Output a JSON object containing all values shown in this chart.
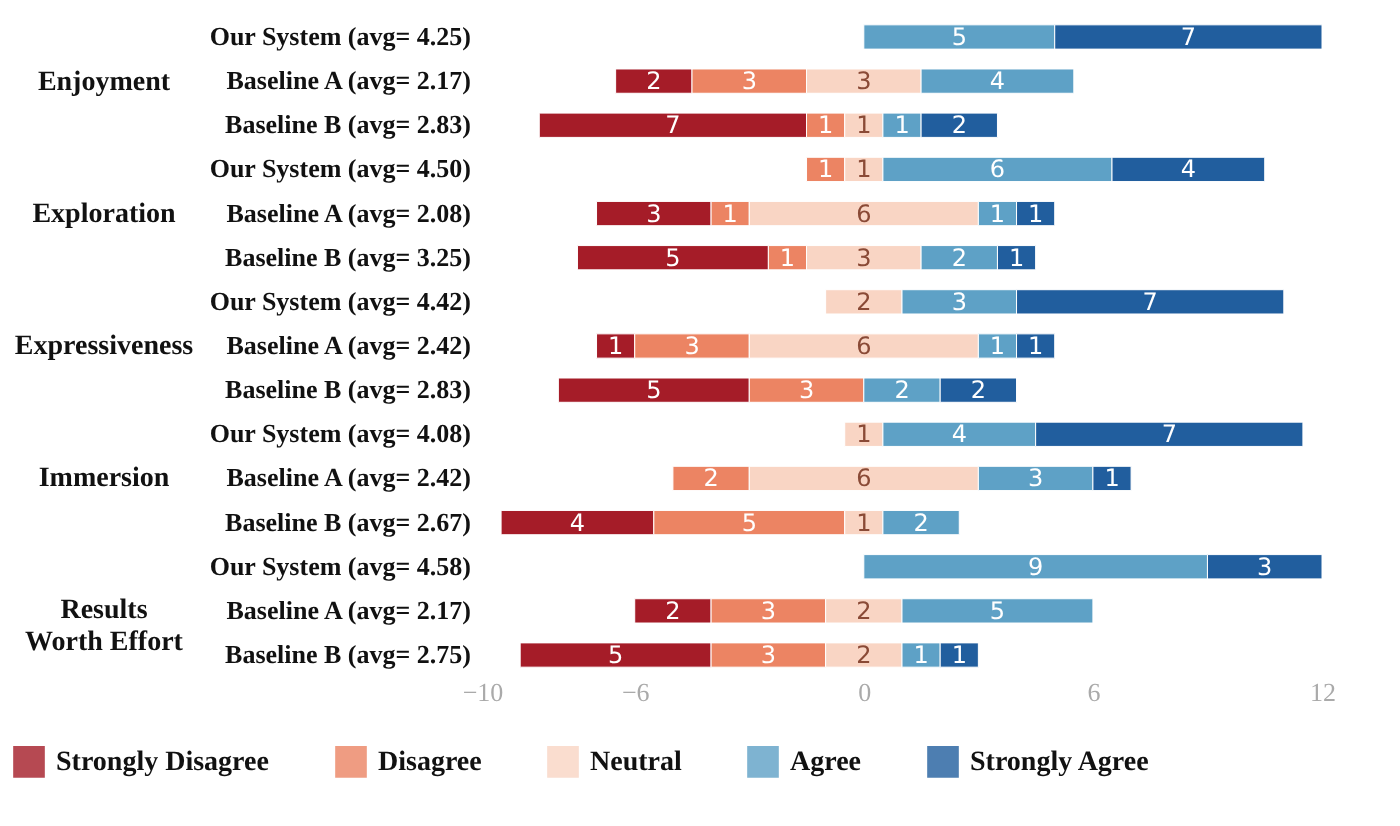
{
  "chart_data": {
    "type": "bar",
    "orientation": "horizontal",
    "categories": [
      "Our System (avg= 4.25)",
      "Baseline A (avg= 2.17)",
      "Baseline B (avg= 2.83)",
      "Our System (avg= 4.50)",
      "Baseline A (avg= 2.08)",
      "Baseline B (avg= 3.25)",
      "Our System (avg= 4.42)",
      "Baseline A (avg= 2.42)",
      "Baseline B (avg= 2.83)",
      "Our System (avg= 4.08)",
      "Baseline A (avg= 2.42)",
      "Baseline B (avg= 2.67)",
      "Our System (avg= 4.58)",
      "Baseline A (avg= 2.17)",
      "Baseline B (avg= 2.75)"
    ],
    "annotations": [
      "Enjoyment",
      "Exploration",
      "Expressiveness",
      "Immersion",
      "Results\nWorth Effort"
    ],
    "series": [
      {
        "name": "Strongly Disagree",
        "color": "#a51c28",
        "values": [
          null,
          2,
          7,
          null,
          3,
          5,
          null,
          1,
          5,
          null,
          null,
          4,
          null,
          2,
          5
        ],
        "base": [
          null,
          -6.5,
          -8.5,
          null,
          -7,
          -7.5,
          null,
          -7,
          -8,
          null,
          null,
          -9.5,
          null,
          -6,
          -9
        ]
      },
      {
        "name": "Disagree",
        "color": "#ec8463",
        "values": [
          null,
          3,
          1,
          1,
          1,
          1,
          null,
          3,
          3,
          null,
          2,
          5,
          null,
          3,
          3
        ],
        "base": [
          null,
          -4.5,
          -1.5,
          -1.5,
          -4,
          -2.5,
          null,
          -6,
          -3,
          null,
          -5,
          -5.5,
          null,
          -4,
          -4
        ]
      },
      {
        "name": "Neutral",
        "color": "#f9d5c4",
        "values": [
          null,
          3,
          1,
          1,
          6,
          3,
          2,
          6,
          null,
          1,
          6,
          1,
          null,
          2,
          2
        ],
        "base": [
          null,
          -1.5,
          -0.5,
          -0.5,
          -3,
          -1.5,
          -1,
          -3,
          null,
          -0.5,
          -3,
          -0.5,
          null,
          -1,
          -1
        ]
      },
      {
        "name": "Agree",
        "color": "#5ea1c6",
        "values": [
          5,
          4,
          1,
          6,
          1,
          2,
          3,
          1,
          2,
          4,
          3,
          2,
          9,
          5,
          1
        ],
        "base": [
          0,
          1.5,
          0.5,
          0.5,
          3,
          1.5,
          1,
          3,
          0,
          0.5,
          3,
          0.5,
          0,
          1,
          1
        ]
      },
      {
        "name": "Strongly Agree",
        "color": "#215e9e",
        "values": [
          7,
          null,
          2,
          4,
          1,
          1,
          7,
          1,
          2,
          7,
          1,
          null,
          3,
          null,
          1
        ],
        "base": [
          5,
          null,
          1.5,
          6.5,
          4,
          3.5,
          4,
          4,
          2,
          4.5,
          6,
          null,
          9,
          null,
          2
        ]
      }
    ],
    "xlim": [
      -10,
      12
    ],
    "xticks": [
      -10,
      -6,
      0,
      6,
      12
    ],
    "data_labels": true,
    "legend": "bottom",
    "grid": false
  }
}
